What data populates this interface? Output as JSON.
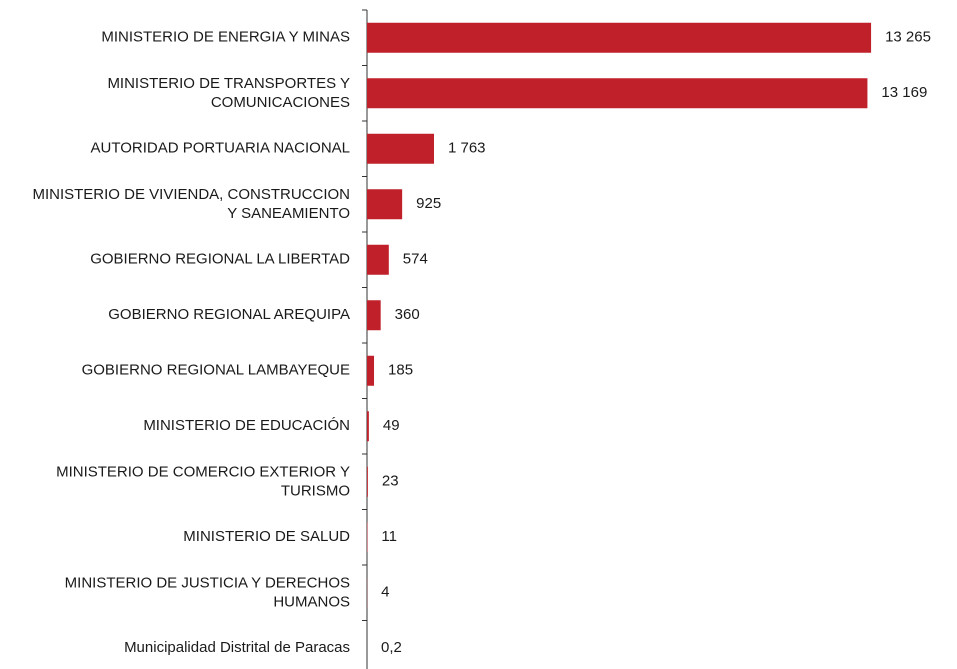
{
  "chart_data": {
    "type": "barh",
    "categories": [
      "MINISTERIO DE ENERGIA Y MINAS",
      "MINISTERIO DE TRANSPORTES Y\nCOMUNICACIONES",
      "AUTORIDAD PORTUARIA NACIONAL",
      "MINISTERIO DE VIVIENDA, CONSTRUCCION\nY SANEAMIENTO",
      "GOBIERNO REGIONAL LA LIBERTAD",
      "GOBIERNO REGIONAL AREQUIPA",
      "GOBIERNO REGIONAL LAMBAYEQUE",
      "MINISTERIO DE EDUCACIÓN",
      "MINISTERIO DE COMERCIO EXTERIOR Y\nTURISMO",
      "MINISTERIO DE SALUD",
      "MINISTERIO DE JUSTICIA Y DERECHOS\nHUMANOS",
      "Municipalidad Distrital de Paracas"
    ],
    "values": [
      13265,
      13169,
      1763,
      925,
      574,
      360,
      185,
      49,
      23,
      11,
      4,
      0.2
    ],
    "value_labels": [
      "13 265",
      "13 169",
      "1 763",
      "925",
      "574",
      "360",
      "185",
      "49",
      "23",
      "11",
      "4",
      "0,2"
    ],
    "color": "#c0202a",
    "xlim": [
      0,
      14000
    ]
  }
}
